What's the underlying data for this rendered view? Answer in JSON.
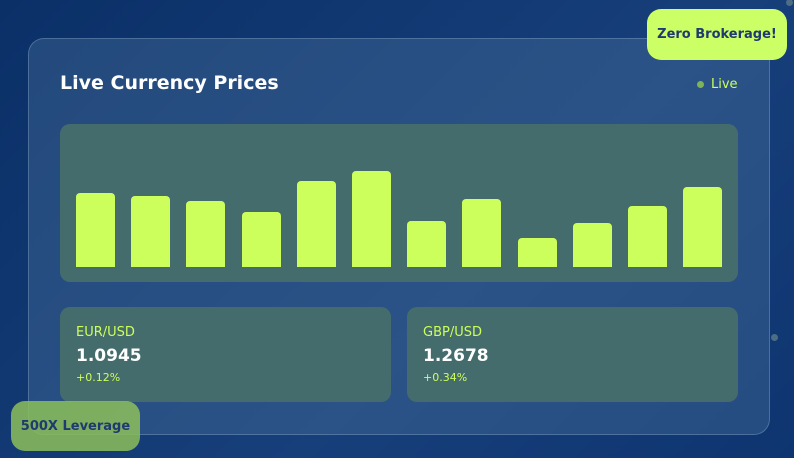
{
  "header": {
    "title": "Live Currency Prices",
    "status": "Live"
  },
  "chart_data": {
    "type": "bar",
    "values": [
      74,
      71,
      66,
      55,
      86,
      96,
      46,
      68,
      29,
      44,
      61,
      80
    ],
    "color": "#ccff5c"
  },
  "pairs": [
    {
      "name": "EUR/USD",
      "price": 1.0945,
      "change": "+0.12%"
    },
    {
      "name": "GBP/USD",
      "price": 1.2678,
      "change": "+0.34%"
    }
  ],
  "badges": {
    "top": "Zero Brokerage!",
    "bottom": "500X Leverage"
  }
}
